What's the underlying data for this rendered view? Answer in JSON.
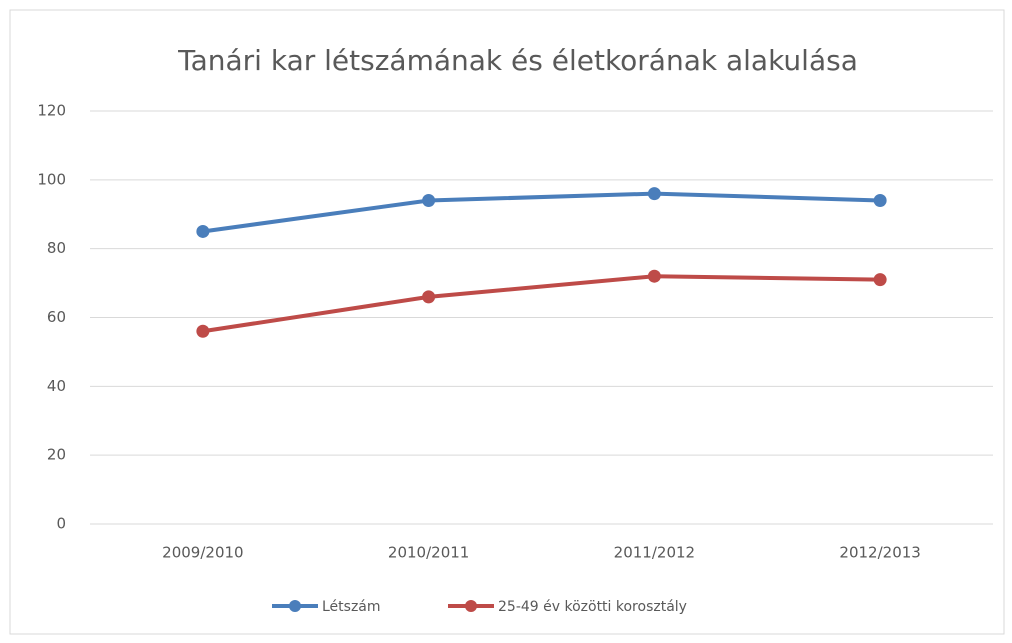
{
  "chart_data": {
    "type": "line",
    "title": "Tanári kar létszámának és életkorának alakulása",
    "categories": [
      "2009/2010",
      "2010/2011",
      "2011/2012",
      "2012/2013"
    ],
    "series": [
      {
        "name": "Létszám",
        "color": "#4a7ebb",
        "values": [
          85,
          94,
          96,
          94
        ]
      },
      {
        "name": "25-49 év közötti korosztály",
        "color": "#be4b48",
        "values": [
          56,
          66,
          72,
          71
        ]
      }
    ],
    "ylim": [
      0,
      120
    ],
    "yticks": [
      0,
      20,
      40,
      60,
      80,
      100,
      120
    ],
    "grid": true,
    "legend": "bottom"
  }
}
